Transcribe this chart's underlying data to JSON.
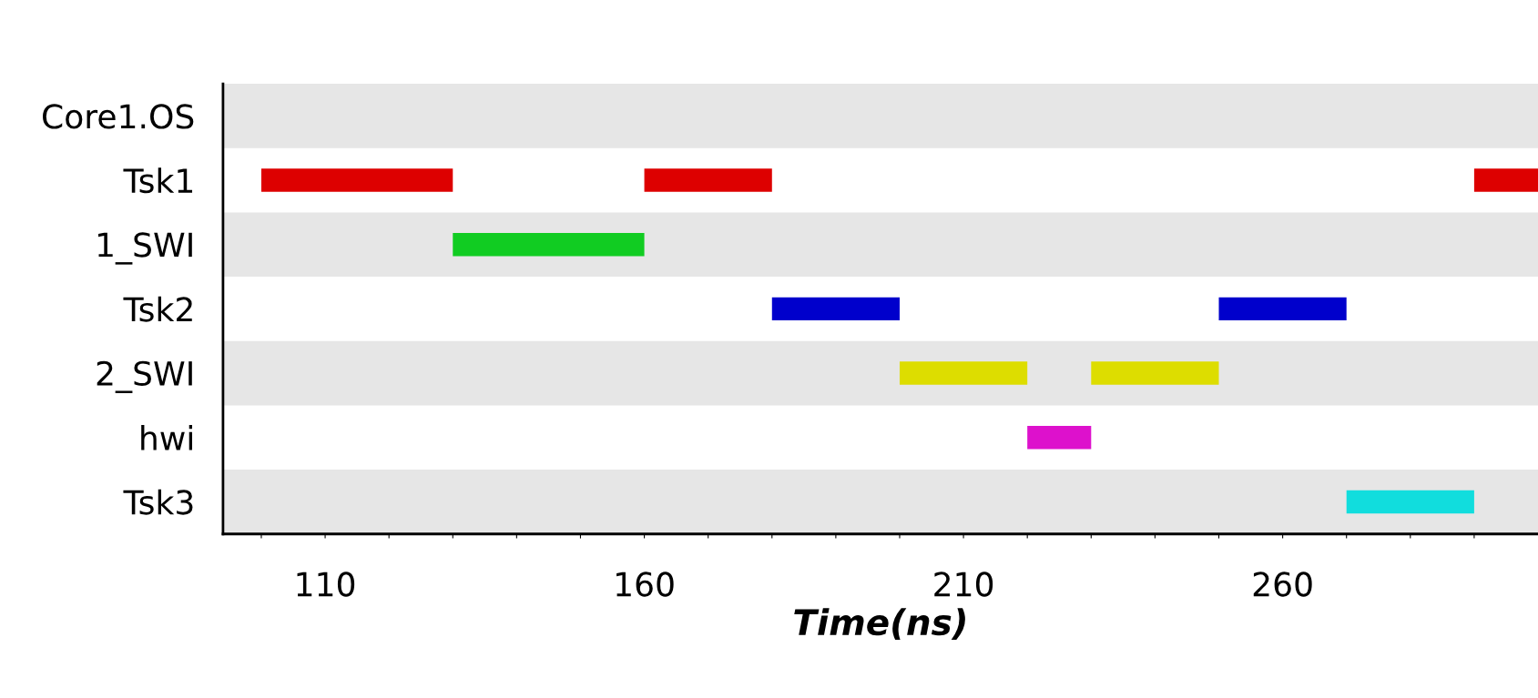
{
  "chart_data": {
    "type": "bar",
    "orientation": "horizontal",
    "xlabel": "Time(ns)",
    "categories": [
      "Core1.OS",
      "Tsk1",
      "1_SWI",
      "Tsk2",
      "2_SWI",
      "hwi",
      "Tsk3"
    ],
    "series": [
      {
        "values": [
          null,
          30,
          30,
          20,
          20,
          10,
          20
        ],
        "base": [
          null,
          100,
          130,
          180,
          200,
          220,
          270
        ],
        "colors": [
          null,
          "#dd0000",
          "#11cc22",
          "#0000cc",
          "#dddd00",
          "#dd11cc",
          "#11dddd"
        ]
      },
      {
        "values": [
          null,
          20,
          null,
          20,
          20,
          null,
          null
        ],
        "base": [
          null,
          160,
          null,
          250,
          230,
          null,
          null
        ],
        "colors": [
          null,
          "#dd0000",
          null,
          "#0000cc",
          "#dddd00",
          null,
          null
        ]
      },
      {
        "values": [
          null,
          10,
          null,
          null,
          null,
          null,
          null
        ],
        "base": [
          null,
          290,
          null,
          null,
          null,
          null,
          null
        ],
        "colors": [
          null,
          "#dd0000",
          null,
          null,
          null,
          null,
          null
        ]
      }
    ],
    "xlim": [
      94,
      300
    ],
    "xticks": [
      {
        "value": 100,
        "label": null
      },
      110,
      {
        "value": 120,
        "label": null
      },
      {
        "value": 130,
        "label": null
      },
      {
        "value": 140,
        "label": null
      },
      {
        "value": 150,
        "label": null
      },
      160,
      {
        "value": 170,
        "label": null
      },
      {
        "value": 180,
        "label": null
      },
      {
        "value": 190,
        "label": null
      },
      {
        "value": 200,
        "label": null
      },
      210,
      {
        "value": 220,
        "label": null
      },
      {
        "value": 230,
        "label": null
      },
      {
        "value": 240,
        "label": null
      },
      {
        "value": 250,
        "label": null
      },
      260,
      {
        "value": 270,
        "label": null
      },
      {
        "value": 280,
        "label": null
      },
      {
        "value": 290,
        "label": null
      }
    ],
    "grid": false
  }
}
